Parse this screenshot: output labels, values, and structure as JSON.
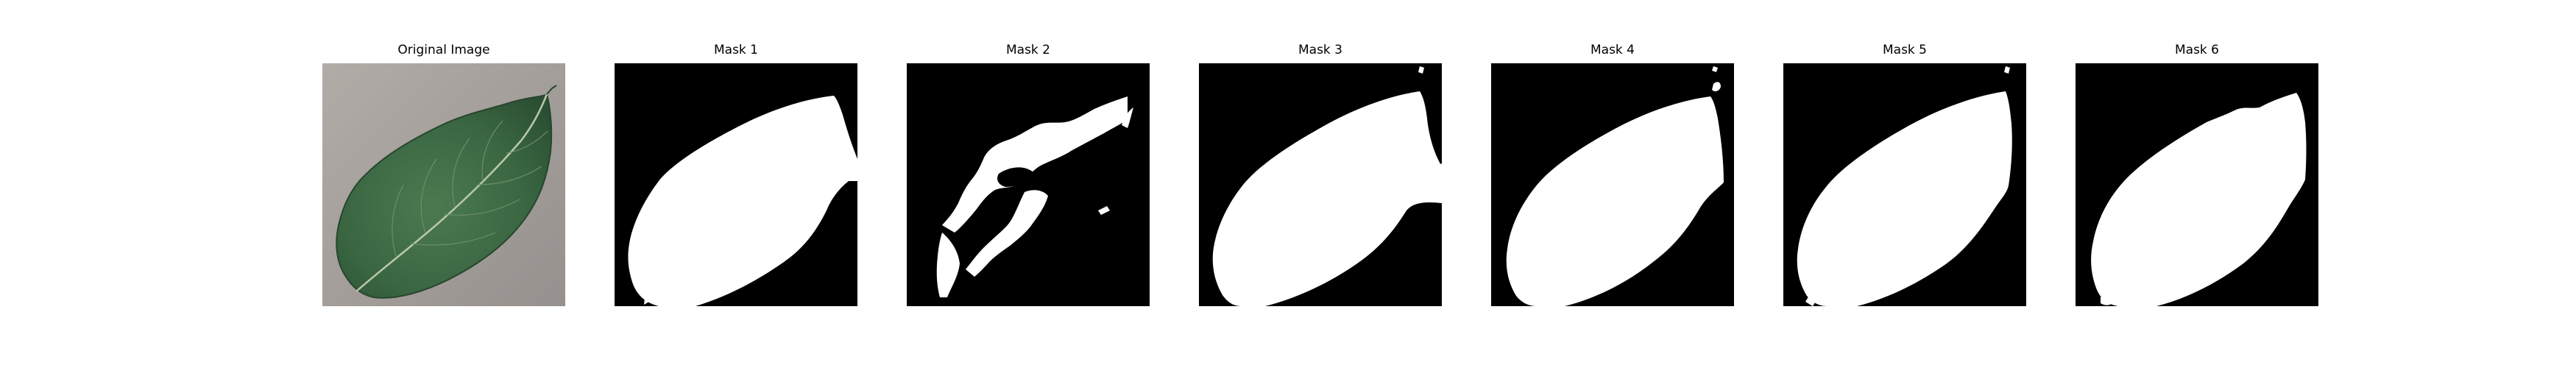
{
  "figure": {
    "panels": [
      {
        "title": "Original Image",
        "kind": "photo",
        "content": "green leaf on gray background"
      },
      {
        "title": "Mask 1",
        "kind": "mask"
      },
      {
        "title": "Mask 2",
        "kind": "mask"
      },
      {
        "title": "Mask 3",
        "kind": "mask"
      },
      {
        "title": "Mask 4",
        "kind": "mask"
      },
      {
        "title": "Mask 5",
        "kind": "mask"
      },
      {
        "title": "Mask 6",
        "kind": "mask"
      }
    ]
  },
  "colors": {
    "mask_background": "#000000",
    "mask_foreground": "#ffffff",
    "photo_background": "#a39e9a",
    "leaf_dark": "#2f5737",
    "leaf_mid": "#3f6d45",
    "vein": "#b9c7a9"
  }
}
